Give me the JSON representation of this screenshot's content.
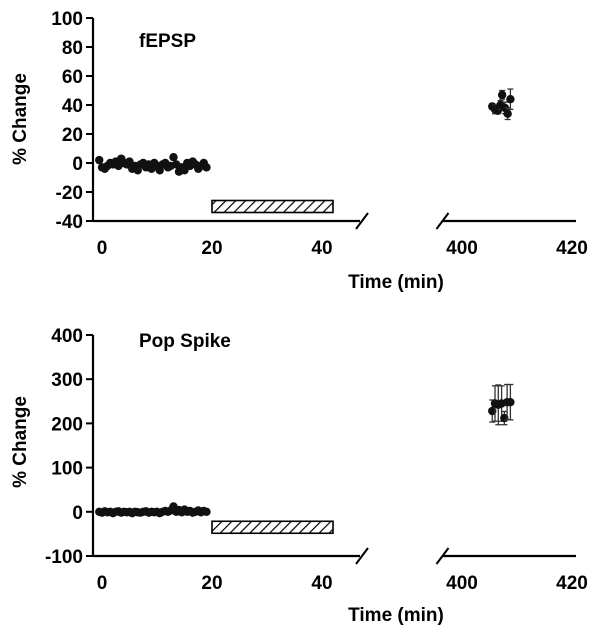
{
  "chart_data": [
    {
      "type": "scatter",
      "title": "fEPSP",
      "ylabel": "% Change",
      "xlabel": "Time (min)",
      "ylim": [
        -40,
        100
      ],
      "yticks": [
        100,
        80,
        60,
        40,
        20,
        0,
        -20,
        -40
      ],
      "xticks": [
        0,
        20,
        40,
        400,
        420
      ],
      "x_break": [
        48,
        395
      ],
      "grid": false,
      "bar": {
        "x": [
          20,
          42
        ],
        "y": -30,
        "pattern": "hatched"
      },
      "series": [
        {
          "points": [
            {
              "x": -0.5,
              "y": 2
            },
            {
              "x": 0,
              "y": -3
            },
            {
              "x": 0.5,
              "y": -4
            },
            {
              "x": 1,
              "y": -2
            },
            {
              "x": 1.5,
              "y": 0
            },
            {
              "x": 2,
              "y": -1
            },
            {
              "x": 2.5,
              "y": 1
            },
            {
              "x": 3,
              "y": -2
            },
            {
              "x": 3.5,
              "y": 3
            },
            {
              "x": 4,
              "y": 0
            },
            {
              "x": 4.5,
              "y": -1
            },
            {
              "x": 5,
              "y": 1
            },
            {
              "x": 5.5,
              "y": -4
            },
            {
              "x": 6,
              "y": -2
            },
            {
              "x": 6.5,
              "y": -5
            },
            {
              "x": 7,
              "y": -1
            },
            {
              "x": 7.5,
              "y": 0
            },
            {
              "x": 8,
              "y": -3
            },
            {
              "x": 8.5,
              "y": -1
            },
            {
              "x": 9,
              "y": -4
            },
            {
              "x": 9.5,
              "y": 0
            },
            {
              "x": 10,
              "y": -2
            },
            {
              "x": 10.5,
              "y": -5
            },
            {
              "x": 11,
              "y": -1
            },
            {
              "x": 11.5,
              "y": 0
            },
            {
              "x": 12,
              "y": -3
            },
            {
              "x": 12.5,
              "y": -2
            },
            {
              "x": 13,
              "y": 4
            },
            {
              "x": 13.5,
              "y": -1
            },
            {
              "x": 14,
              "y": -6
            },
            {
              "x": 14.5,
              "y": -3
            },
            {
              "x": 15,
              "y": -5
            },
            {
              "x": 15.5,
              "y": 0
            },
            {
              "x": 16,
              "y": -2
            },
            {
              "x": 16.5,
              "y": 1
            },
            {
              "x": 17,
              "y": -1
            },
            {
              "x": 17.5,
              "y": -4
            },
            {
              "x": 18,
              "y": -2
            },
            {
              "x": 18.5,
              "y": 0
            },
            {
              "x": 19,
              "y": -3
            }
          ],
          "late_points": [
            {
              "x": 405.5,
              "y": 39,
              "err": 2
            },
            {
              "x": 406,
              "y": 37,
              "err": 3
            },
            {
              "x": 406.5,
              "y": 36,
              "err": 2
            },
            {
              "x": 407,
              "y": 40,
              "err": 3
            },
            {
              "x": 407.3,
              "y": 47,
              "err": 3
            },
            {
              "x": 407.8,
              "y": 38,
              "err": 4
            },
            {
              "x": 408.3,
              "y": 34,
              "err": 4
            },
            {
              "x": 408.8,
              "y": 44,
              "err": 7
            }
          ]
        }
      ]
    },
    {
      "type": "scatter",
      "title": "Pop Spike",
      "ylabel": "% Change",
      "xlabel": "Time (min)",
      "ylim": [
        -100,
        400
      ],
      "yticks": [
        400,
        300,
        200,
        100,
        0,
        -100
      ],
      "xticks": [
        0,
        20,
        40,
        400,
        420
      ],
      "x_break": [
        48,
        395
      ],
      "grid": false,
      "bar": {
        "x": [
          20,
          42
        ],
        "y": -35,
        "pattern": "hatched"
      },
      "series": [
        {
          "points": [
            {
              "x": -0.5,
              "y": 0
            },
            {
              "x": 0,
              "y": -2
            },
            {
              "x": 0.5,
              "y": 1
            },
            {
              "x": 1,
              "y": -1
            },
            {
              "x": 1.5,
              "y": 0
            },
            {
              "x": 2,
              "y": -3
            },
            {
              "x": 2.5,
              "y": 0
            },
            {
              "x": 3,
              "y": 1
            },
            {
              "x": 3.5,
              "y": -2
            },
            {
              "x": 4,
              "y": 0
            },
            {
              "x": 4.5,
              "y": -1
            },
            {
              "x": 5,
              "y": 0
            },
            {
              "x": 5.5,
              "y": -3
            },
            {
              "x": 6,
              "y": 0
            },
            {
              "x": 6.5,
              "y": -1
            },
            {
              "x": 7,
              "y": -2
            },
            {
              "x": 7.5,
              "y": 0
            },
            {
              "x": 8,
              "y": 1
            },
            {
              "x": 8.5,
              "y": -2
            },
            {
              "x": 9,
              "y": 0
            },
            {
              "x": 9.5,
              "y": -1
            },
            {
              "x": 10,
              "y": 0
            },
            {
              "x": 10.5,
              "y": -3
            },
            {
              "x": 11,
              "y": 0
            },
            {
              "x": 11.5,
              "y": 2
            },
            {
              "x": 12,
              "y": 0
            },
            {
              "x": 12.5,
              "y": 3
            },
            {
              "x": 13,
              "y": 12
            },
            {
              "x": 13.5,
              "y": 0
            },
            {
              "x": 14,
              "y": 4
            },
            {
              "x": 14.5,
              "y": -1
            },
            {
              "x": 15,
              "y": 5
            },
            {
              "x": 15.5,
              "y": 0
            },
            {
              "x": 16,
              "y": 2
            },
            {
              "x": 16.5,
              "y": -2
            },
            {
              "x": 17,
              "y": 0
            },
            {
              "x": 17.5,
              "y": 3
            },
            {
              "x": 18,
              "y": -1
            },
            {
              "x": 18.5,
              "y": 2
            },
            {
              "x": 19,
              "y": 0
            }
          ],
          "late_points": [
            {
              "x": 405.5,
              "y": 228,
              "err": 25
            },
            {
              "x": 406,
              "y": 245,
              "err": 40
            },
            {
              "x": 406.6,
              "y": 242,
              "err": 45
            },
            {
              "x": 407.2,
              "y": 245,
              "err": 40
            },
            {
              "x": 407.7,
              "y": 212,
              "err": 15
            },
            {
              "x": 408.2,
              "y": 248,
              "err": 40
            },
            {
              "x": 408.8,
              "y": 248,
              "err": 40
            }
          ]
        }
      ]
    }
  ]
}
